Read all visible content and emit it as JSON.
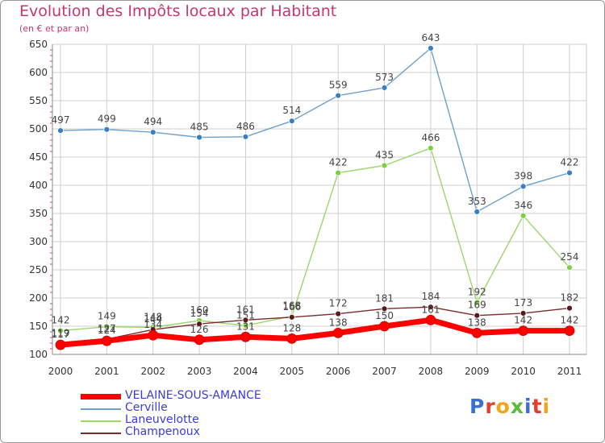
{
  "chart_data": {
    "type": "line",
    "title": "Evolution des Impôts locaux par Habitant",
    "subtitle": "(en € et par an)",
    "x": [
      "2000",
      "2001",
      "2002",
      "2003",
      "2004",
      "2005",
      "2006",
      "2007",
      "2008",
      "2009",
      "2010",
      "2011"
    ],
    "ylim": [
      100,
      650
    ],
    "yticks": [
      100,
      150,
      200,
      250,
      300,
      350,
      400,
      450,
      500,
      550,
      600,
      650
    ],
    "grid": true,
    "legend_position": "bottom-left",
    "series": [
      {
        "name": "VELAINE-SOUS-AMANCE",
        "color": "#ff0000",
        "values": [
          117,
          124,
          134,
          126,
          131,
          128,
          138,
          150,
          161,
          138,
          142,
          142
        ]
      },
      {
        "name": "Cerville",
        "color": "#6ea0cd",
        "values": [
          497,
          499,
          494,
          485,
          486,
          514,
          559,
          573,
          643,
          353,
          398,
          422
        ]
      },
      {
        "name": "Laneuvelotte",
        "color": "#9ad86a",
        "values": [
          142,
          149,
          148,
          160,
          151,
          168,
          422,
          435,
          466,
          192,
          346,
          254
        ]
      },
      {
        "name": "Champenoux",
        "color": "#7a2c2c",
        "values": [
          119,
          127,
          144,
          154,
          161,
          166,
          172,
          181,
          184,
          169,
          173,
          182
        ]
      }
    ]
  },
  "logo": {
    "text": "Proxiti"
  }
}
